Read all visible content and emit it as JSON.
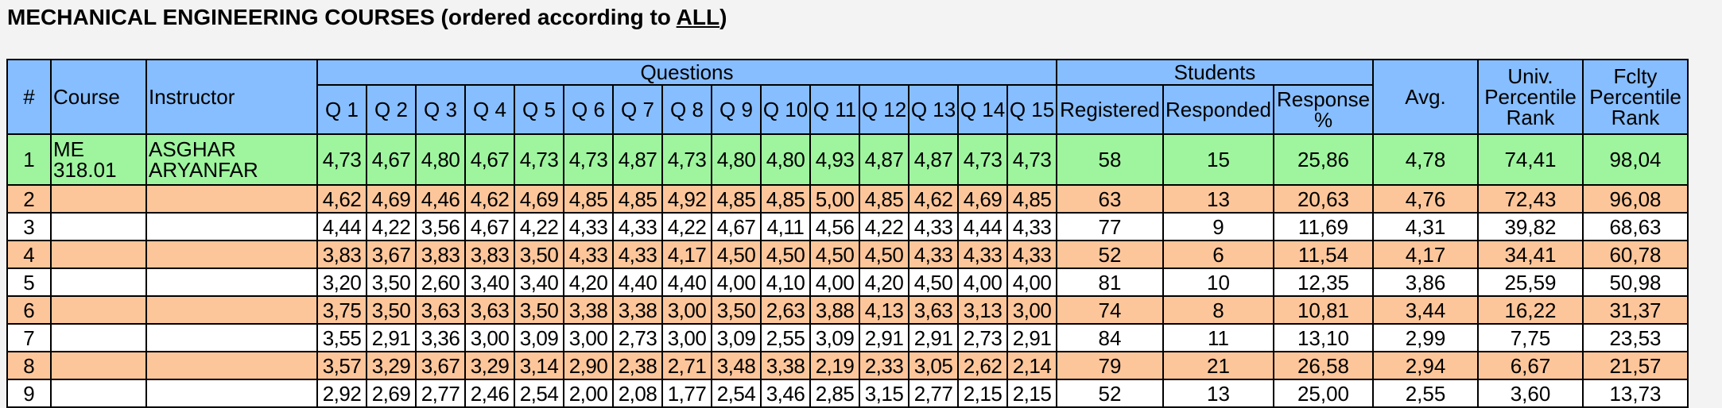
{
  "title": {
    "prefix": "MECHANICAL ENGINEERING COURSES (ordered according to ",
    "link": "ALL",
    "suffix": ")"
  },
  "headers": {
    "num": "#",
    "course": "Course",
    "instructor": "Instructor",
    "questions": "Questions",
    "students": "Students",
    "avg": "Avg.",
    "univ": "Univ. Percentile Rank",
    "fclty": "Fclty Percentile Rank",
    "registered": "Registered",
    "responded": "Responded",
    "response": "Response %",
    "q": [
      "Q 1",
      "Q 2",
      "Q 3",
      "Q 4",
      "Q 5",
      "Q 6",
      "Q 7",
      "Q 8",
      "Q 9",
      "Q 10",
      "Q 11",
      "Q 12",
      "Q 13",
      "Q 14",
      "Q 15"
    ]
  },
  "rows": [
    {
      "num": "1",
      "course": "ME 318.01",
      "instructor": "ASGHAR ARYANFAR",
      "q": [
        "4,73",
        "4,67",
        "4,80",
        "4,67",
        "4,73",
        "4,73",
        "4,87",
        "4,73",
        "4,80",
        "4,80",
        "4,93",
        "4,87",
        "4,87",
        "4,73",
        "4,73"
      ],
      "registered": "58",
      "responded": "15",
      "response": "25,86",
      "avg": "4,78",
      "univ": "74,41",
      "fclty": "98,04",
      "color": "green"
    },
    {
      "num": "2",
      "course": "",
      "instructor": "",
      "q": [
        "4,62",
        "4,69",
        "4,46",
        "4,62",
        "4,69",
        "4,85",
        "4,85",
        "4,92",
        "4,85",
        "4,85",
        "5,00",
        "4,85",
        "4,62",
        "4,69",
        "4,85"
      ],
      "registered": "63",
      "responded": "13",
      "response": "20,63",
      "avg": "4,76",
      "univ": "72,43",
      "fclty": "96,08",
      "color": "orange"
    },
    {
      "num": "3",
      "course": "",
      "instructor": "",
      "q": [
        "4,44",
        "4,22",
        "3,56",
        "4,67",
        "4,22",
        "4,33",
        "4,33",
        "4,22",
        "4,67",
        "4,11",
        "4,56",
        "4,22",
        "4,33",
        "4,44",
        "4,33"
      ],
      "registered": "77",
      "responded": "9",
      "response": "11,69",
      "avg": "4,31",
      "univ": "39,82",
      "fclty": "68,63",
      "color": "white"
    },
    {
      "num": "4",
      "course": "",
      "instructor": "",
      "q": [
        "3,83",
        "3,67",
        "3,83",
        "3,83",
        "3,50",
        "4,33",
        "4,33",
        "4,17",
        "4,50",
        "4,50",
        "4,50",
        "4,50",
        "4,33",
        "4,33",
        "4,33"
      ],
      "registered": "52",
      "responded": "6",
      "response": "11,54",
      "avg": "4,17",
      "univ": "34,41",
      "fclty": "60,78",
      "color": "orange"
    },
    {
      "num": "5",
      "course": "",
      "instructor": "",
      "q": [
        "3,20",
        "3,50",
        "2,60",
        "3,40",
        "3,40",
        "4,20",
        "4,40",
        "4,40",
        "4,00",
        "4,10",
        "4,00",
        "4,20",
        "4,50",
        "4,00",
        "4,00"
      ],
      "registered": "81",
      "responded": "10",
      "response": "12,35",
      "avg": "3,86",
      "univ": "25,59",
      "fclty": "50,98",
      "color": "white"
    },
    {
      "num": "6",
      "course": "",
      "instructor": "",
      "q": [
        "3,75",
        "3,50",
        "3,63",
        "3,63",
        "3,50",
        "3,38",
        "3,38",
        "3,00",
        "3,50",
        "2,63",
        "3,88",
        "4,13",
        "3,63",
        "3,13",
        "3,00"
      ],
      "registered": "74",
      "responded": "8",
      "response": "10,81",
      "avg": "3,44",
      "univ": "16,22",
      "fclty": "31,37",
      "color": "orange"
    },
    {
      "num": "7",
      "course": "",
      "instructor": "",
      "q": [
        "3,55",
        "2,91",
        "3,36",
        "3,00",
        "3,09",
        "3,00",
        "2,73",
        "3,00",
        "3,09",
        "2,55",
        "3,09",
        "2,91",
        "2,91",
        "2,73",
        "2,91"
      ],
      "registered": "84",
      "responded": "11",
      "response": "13,10",
      "avg": "2,99",
      "univ": "7,75",
      "fclty": "23,53",
      "color": "white"
    },
    {
      "num": "8",
      "course": "",
      "instructor": "",
      "q": [
        "3,57",
        "3,29",
        "3,67",
        "3,29",
        "3,14",
        "2,90",
        "2,38",
        "2,71",
        "3,48",
        "3,38",
        "2,19",
        "2,33",
        "3,05",
        "2,62",
        "2,14"
      ],
      "registered": "79",
      "responded": "21",
      "response": "26,58",
      "avg": "2,94",
      "univ": "6,67",
      "fclty": "21,57",
      "color": "orange"
    },
    {
      "num": "9",
      "course": "",
      "instructor": "",
      "q": [
        "2,92",
        "2,69",
        "2,77",
        "2,46",
        "2,54",
        "2,00",
        "2,08",
        "1,77",
        "2,54",
        "3,46",
        "2,85",
        "3,15",
        "2,77",
        "2,15",
        "2,15"
      ],
      "registered": "52",
      "responded": "13",
      "response": "25,00",
      "avg": "2,55",
      "univ": "3,60",
      "fclty": "13,73",
      "color": "white"
    }
  ],
  "colors": {
    "header": "#87beff",
    "green": "#9ef59e",
    "orange": "#fdc69a",
    "white": "#ffffff"
  }
}
